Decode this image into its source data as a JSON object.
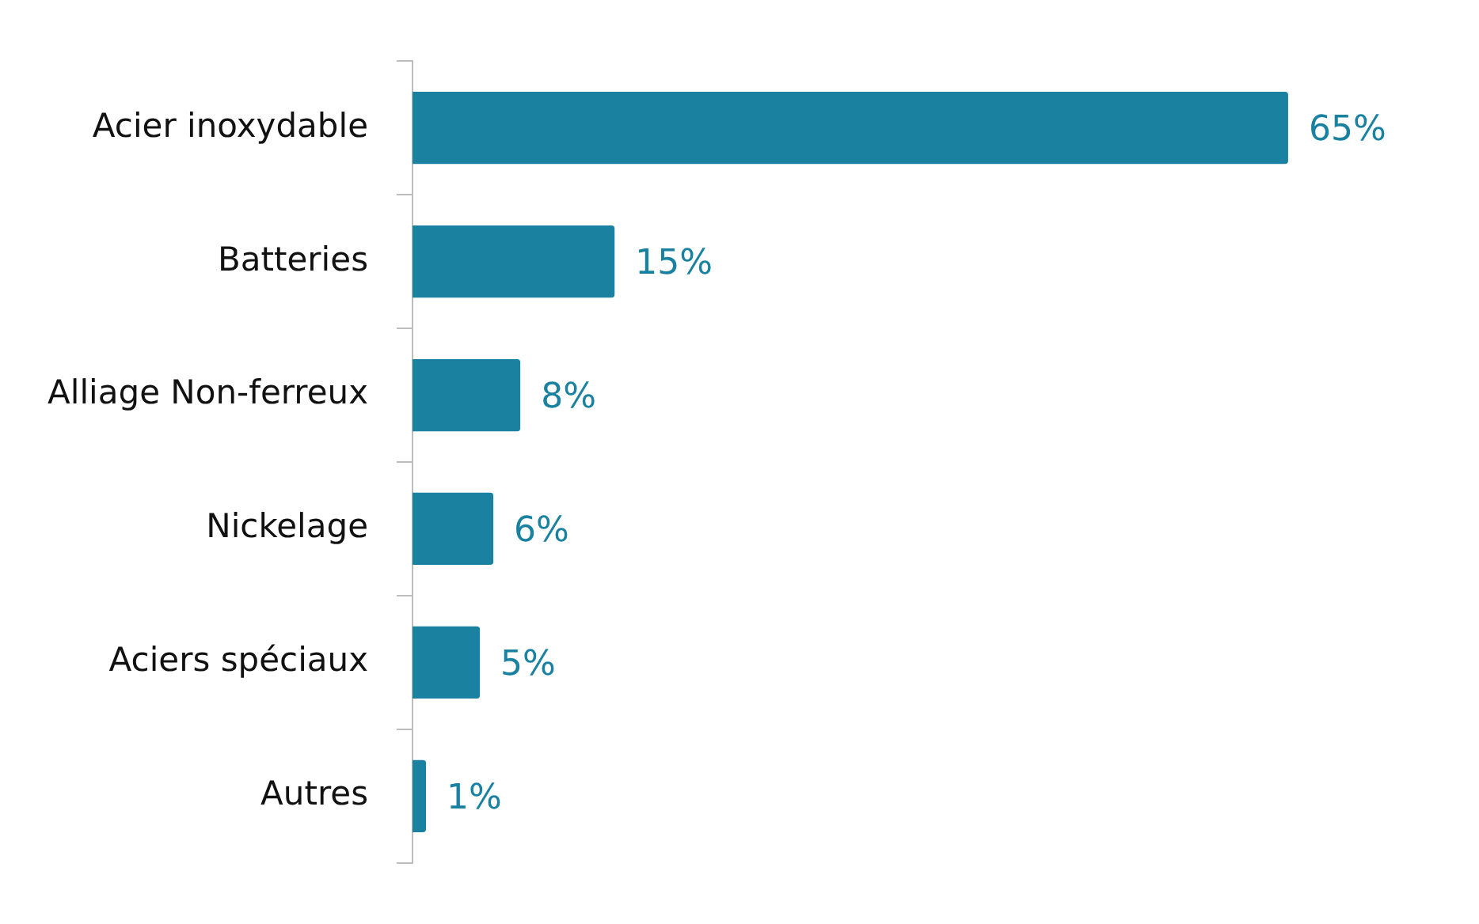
{
  "chart_data": {
    "type": "bar",
    "orientation": "horizontal",
    "categories": [
      "Acier inoxydable",
      "Batteries",
      "Alliage Non-ferreux",
      "Nickelage",
      "Aciers spéciaux",
      "Autres"
    ],
    "values": [
      65,
      15,
      8,
      6,
      5,
      1
    ],
    "value_labels": [
      "65%",
      "15%",
      "8%",
      "6%",
      "5%",
      "1%"
    ],
    "color": "#1a82a0",
    "tick_labels": "y"
  }
}
